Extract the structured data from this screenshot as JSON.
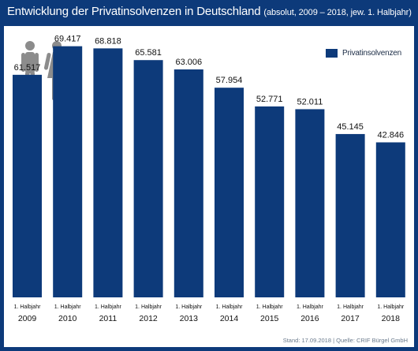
{
  "header": {
    "title": "Entwicklung der Privatinsolvenzen in Deutschland",
    "subtitle": "(absolut, 2009 – 2018, jew. 1. Halbjahr)"
  },
  "legend": {
    "label": "Privatinsolvenzen"
  },
  "source": "Stand: 17.09.2018 | Quelle: CRIF Bürgel GmbH",
  "colors": {
    "background": "#0d3a7a",
    "bar": "#0d3a7a",
    "icon": "#8c8c8c"
  },
  "icons": [
    "male-person-icon",
    "female-person-icon"
  ],
  "chart_data": {
    "type": "bar",
    "title": "Entwicklung der Privatinsolvenzen in Deutschland",
    "subtitle": "(absolut, 2009 – 2018, jew. 1. Halbjahr)",
    "categories": [
      "2009",
      "2010",
      "2011",
      "2012",
      "2013",
      "2014",
      "2015",
      "2016",
      "2017",
      "2018"
    ],
    "category_sublabel": "1. Halbjahr",
    "series": [
      {
        "name": "Privatinsolvenzen",
        "values": [
          61517,
          69417,
          68818,
          65581,
          63006,
          57954,
          52771,
          52011,
          45145,
          42846
        ],
        "labels": [
          "61.517",
          "69.417",
          "68.818",
          "65.581",
          "63.006",
          "57.954",
          "52.771",
          "52.011",
          "45.145",
          "42.846"
        ]
      }
    ],
    "ylim": [
      0,
      75000
    ],
    "grid": false,
    "legend_position": "top-right"
  }
}
